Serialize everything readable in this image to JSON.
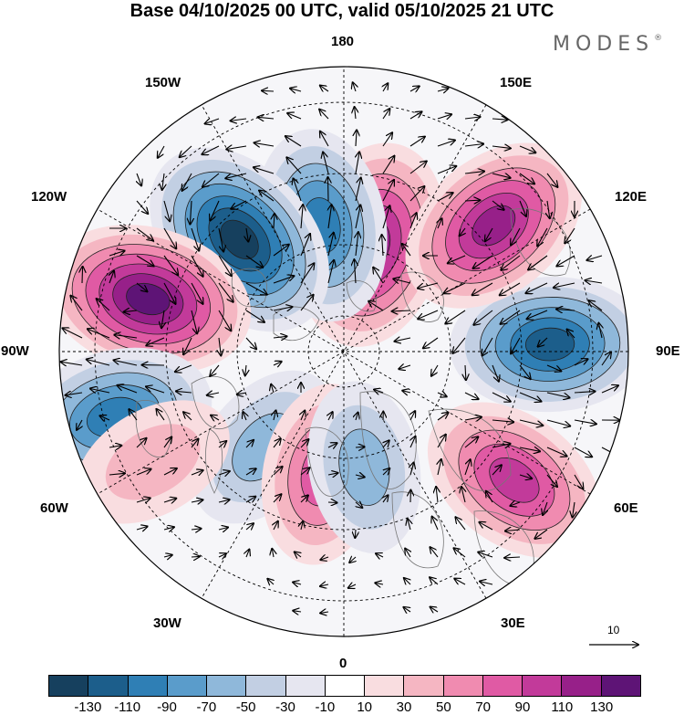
{
  "title": "Base 04/10/2025 00 UTC, valid 05/10/2025 21 UTC",
  "brand": {
    "name": "MODES",
    "mark": "®"
  },
  "longitude_labels": {
    "l180": "180",
    "l150w": "150W",
    "l150e": "150E",
    "l120w": "120W",
    "l120e": "120E",
    "l90w": "90W",
    "l90e": "90E",
    "l60w": "60W",
    "l60e": "60E",
    "l30w": "30W",
    "l30e": "30E",
    "l0": "0"
  },
  "reference_vector": {
    "label": "10"
  },
  "colorbar": {
    "colors": [
      "#16405e",
      "#1c5e8b",
      "#2f7fb5",
      "#5a9ccb",
      "#8fb8da",
      "#c2cfe3",
      "#e6e6f0",
      "#ffffff",
      "#f9dde0",
      "#f5b6c2",
      "#f08bb0",
      "#e05aa4",
      "#c23a9a",
      "#972089",
      "#5e1476"
    ],
    "ticks": [
      "-130",
      "-110",
      "-90",
      "-70",
      "-50",
      "-30",
      "-10",
      "10",
      "30",
      "50",
      "70",
      "90",
      "110",
      "130"
    ]
  },
  "anomaly_centers": [
    {
      "lon_deg": 165,
      "colat_deg": 31,
      "value": 115
    },
    {
      "lon_deg": -170,
      "colat_deg": 36,
      "value": -85
    },
    {
      "lon_deg": -137,
      "colat_deg": 43,
      "value": -125
    },
    {
      "lon_deg": -105,
      "colat_deg": 57,
      "value": 120
    },
    {
      "lon_deg": -74,
      "colat_deg": 67,
      "value": -95
    },
    {
      "lon_deg": -40,
      "colat_deg": 35,
      "value": -45
    },
    {
      "lon_deg": -60,
      "colat_deg": 62,
      "value": 25
    },
    {
      "lon_deg": -10,
      "colat_deg": 35,
      "value": 60
    },
    {
      "lon_deg": 10,
      "colat_deg": 33,
      "value": -40
    },
    {
      "lon_deg": 53,
      "colat_deg": 60,
      "value": 85
    },
    {
      "lon_deg": 92,
      "colat_deg": 58,
      "value": -100
    },
    {
      "lon_deg": 130,
      "colat_deg": 55,
      "value": 100
    }
  ]
}
